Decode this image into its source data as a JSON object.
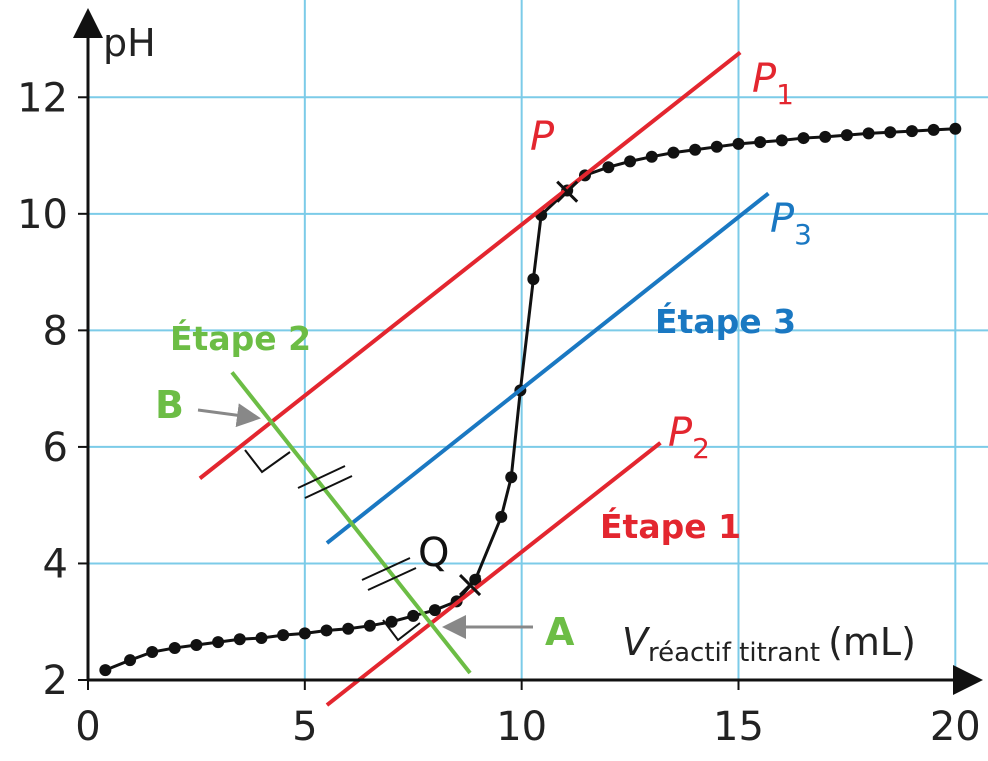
{
  "chart_data": {
    "type": "line",
    "y_label": "pH",
    "x_label": {
      "main": "V",
      "sub": "réactif titrant",
      "unit": "(mL)"
    },
    "xlim": [
      0,
      20.5
    ],
    "ylim": [
      2,
      13
    ],
    "xticks": [
      0,
      5,
      10,
      15,
      20
    ],
    "yticks": [
      2,
      4,
      6,
      8,
      10,
      12
    ],
    "grid": true,
    "series": [
      {
        "color": "#111111",
        "marker": true,
        "x": [
          0.4,
          0.97,
          1.48,
          2,
          2.5,
          3,
          3.5,
          4,
          4.5,
          5,
          5.5,
          6,
          6.5,
          7,
          7.5,
          8,
          8.5,
          8.93,
          9.53,
          9.76,
          9.97,
          10.27,
          10.45,
          11.05,
          11.46,
          12,
          12.5,
          13,
          13.5,
          14,
          14.5,
          15,
          15.5,
          16,
          16.5,
          17,
          17.5,
          18,
          18.5,
          19,
          19.5,
          20
        ],
        "values": [
          2.17,
          2.34,
          2.48,
          2.55,
          2.6,
          2.65,
          2.7,
          2.72,
          2.77,
          2.8,
          2.85,
          2.88,
          2.93,
          3,
          3.1,
          3.2,
          3.35,
          3.72,
          4.8,
          5.48,
          6.97,
          8.88,
          9.98,
          10.4,
          10.66,
          10.8,
          10.9,
          10.98,
          11.05,
          11.1,
          11.15,
          11.2,
          11.23,
          11.26,
          11.3,
          11.32,
          11.35,
          11.38,
          11.4,
          11.42,
          11.44,
          11.46
        ]
      },
      {
        "color": "#e3262f",
        "x": [
          2.58,
          15.04
        ],
        "values": [
          5.46,
          12.77
        ],
        "label": {
          "text": "P",
          "sub": "1"
        }
      },
      {
        "color": "#e3262f",
        "x": [
          5.51,
          13.2
        ],
        "values": [
          1.57,
          6.07
        ],
        "label": {
          "text": "P",
          "sub": "2"
        },
        "step": "Étape 1"
      },
      {
        "color": "#1a78c2",
        "x": [
          5.51,
          15.69
        ],
        "values": [
          4.35,
          10.35
        ],
        "label": {
          "text": "P",
          "sub": "3"
        },
        "step": "Étape 3"
      },
      {
        "color": "#6cbd45",
        "x": [
          3.32,
          8.81
        ],
        "values": [
          7.28,
          2.12
        ],
        "step": "Étape 2"
      }
    ],
    "points": [
      {
        "label": "P",
        "x": 11.05,
        "y": 10.38,
        "color": "#e3262f"
      },
      {
        "label": "Q",
        "x": 8.81,
        "y": 3.63,
        "color": "#111111"
      }
    ],
    "arrow_labels": [
      {
        "text": "B",
        "color": "#6cbd45"
      },
      {
        "text": "A",
        "color": "#6cbd45"
      }
    ]
  }
}
